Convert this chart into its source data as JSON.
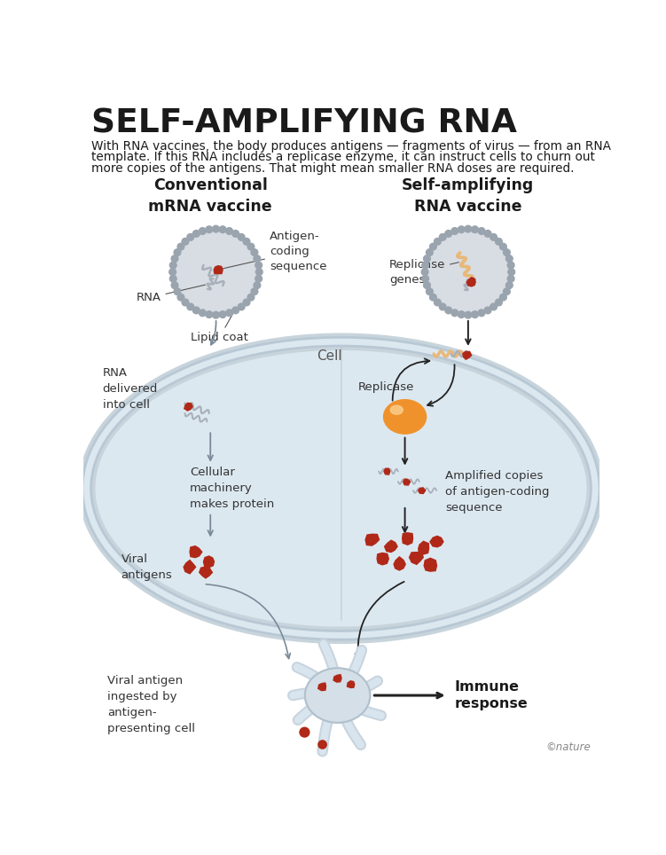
{
  "title": "SELF-AMPLIFYING RNA",
  "subtitle_line1": "With RNA vaccines, the body produces antigens — fragments of virus — from an RNA",
  "subtitle_line2": "template. If this RNA includes a replicase enzyme, it can instruct cells to churn out",
  "subtitle_line3": "more copies of the antigens. That might mean smaller RNA doses are required.",
  "left_header": "Conventional\nmRNA vaccine",
  "right_header": "Self-amplifying\nRNA vaccine",
  "bg_color": "#ffffff",
  "cell_fill": "#dce8f0",
  "cell_border": "#b8c8d4",
  "particle_fill": "#d8dde3",
  "particle_bump": "#9aa4ae",
  "rna_gray": "#a8b0ba",
  "antigen_red": "#b02818",
  "repli_gene_orange": "#e8b87a",
  "repli_enzyme_color": "#f0922b",
  "text_dark": "#1a1a1a",
  "text_mid": "#333333",
  "arrow_dark": "#222222",
  "arrow_light": "#7a8a98",
  "copyright": "©nature"
}
